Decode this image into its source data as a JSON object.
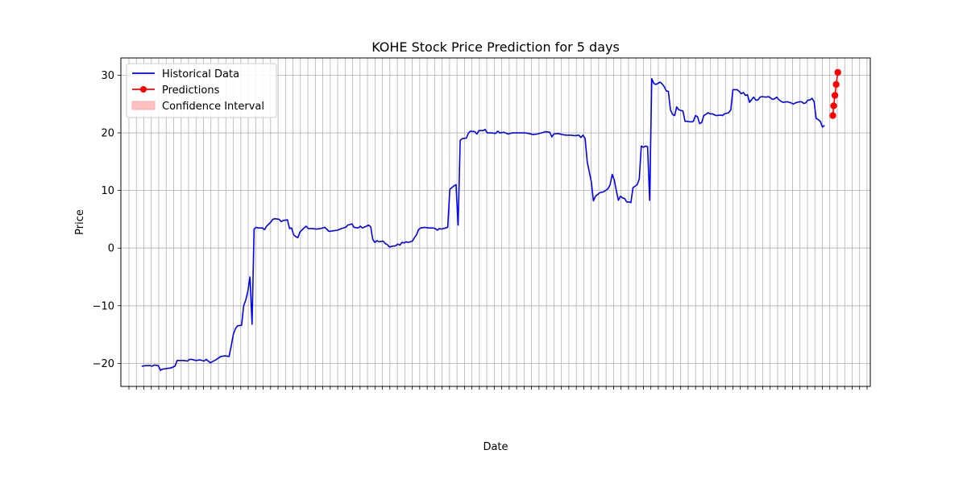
{
  "chart_data": {
    "type": "line",
    "title": "KOHE Stock Price Prediction for 5 days",
    "xlabel": "Date",
    "ylabel": "Price",
    "ylim": [
      -24,
      33
    ],
    "yticks": [
      -20,
      -10,
      0,
      10,
      20,
      30
    ],
    "grid": true,
    "legend_position": "upper-left",
    "legend": {
      "historical": "Historical Data",
      "predictions": "Predictions",
      "confidence": "Confidence Interval"
    },
    "colors": {
      "historical": "#0000ff",
      "predictions": "#ff0000",
      "confidence": "#ffc0c0"
    },
    "series": [
      {
        "name": "Historical Data",
        "points": [
          [
            0.0,
            -20.5
          ],
          [
            0.01,
            -20.4
          ],
          [
            0.02,
            -20.4
          ],
          [
            0.025,
            -20.5
          ],
          [
            0.03,
            -20.3
          ],
          [
            0.04,
            -20.4
          ],
          [
            0.045,
            -21.2
          ],
          [
            0.05,
            -21.0
          ],
          [
            0.06,
            -20.9
          ],
          [
            0.07,
            -20.8
          ],
          [
            0.08,
            -20.5
          ],
          [
            0.085,
            -19.5
          ],
          [
            0.1,
            -19.5
          ],
          [
            0.11,
            -19.6
          ],
          [
            0.115,
            -19.3
          ],
          [
            0.12,
            -19.3
          ],
          [
            0.13,
            -19.5
          ],
          [
            0.14,
            -19.4
          ],
          [
            0.15,
            -19.6
          ],
          [
            0.155,
            -19.3
          ],
          [
            0.165,
            -19.9
          ],
          [
            0.17,
            -19.7
          ],
          [
            0.175,
            -19.5
          ],
          [
            0.18,
            -19.3
          ],
          [
            0.19,
            -18.8
          ],
          [
            0.2,
            -18.7
          ],
          [
            0.21,
            -18.8
          ],
          [
            0.215,
            -17.0
          ],
          [
            0.22,
            -15.0
          ],
          [
            0.225,
            -14.0
          ],
          [
            0.23,
            -13.5
          ],
          [
            0.24,
            -13.4
          ],
          [
            0.245,
            -10.0
          ],
          [
            0.25,
            -9.0
          ],
          [
            0.255,
            -7.5
          ],
          [
            0.26,
            -5.0
          ],
          [
            0.265,
            -13.2
          ],
          [
            0.27,
            3.3
          ],
          [
            0.275,
            3.6
          ],
          [
            0.28,
            3.5
          ],
          [
            0.29,
            3.5
          ],
          [
            0.295,
            3.2
          ],
          [
            0.3,
            3.8
          ],
          [
            0.31,
            4.5
          ],
          [
            0.315,
            5.0
          ],
          [
            0.32,
            5.1
          ],
          [
            0.33,
            5.0
          ],
          [
            0.335,
            4.6
          ],
          [
            0.34,
            4.8
          ],
          [
            0.35,
            4.9
          ],
          [
            0.355,
            3.4
          ],
          [
            0.36,
            3.5
          ],
          [
            0.365,
            2.3
          ],
          [
            0.37,
            2.0
          ],
          [
            0.375,
            1.8
          ],
          [
            0.38,
            2.8
          ],
          [
            0.39,
            3.5
          ],
          [
            0.395,
            3.8
          ],
          [
            0.4,
            3.4
          ],
          [
            0.41,
            3.4
          ],
          [
            0.42,
            3.3
          ],
          [
            0.43,
            3.4
          ],
          [
            0.44,
            3.6
          ],
          [
            0.45,
            2.9
          ],
          [
            0.46,
            3.0
          ],
          [
            0.47,
            3.1
          ],
          [
            0.48,
            3.4
          ],
          [
            0.49,
            3.6
          ],
          [
            0.495,
            4.0
          ],
          [
            0.5,
            4.1
          ],
          [
            0.505,
            4.2
          ],
          [
            0.51,
            3.6
          ],
          [
            0.52,
            3.5
          ],
          [
            0.525,
            3.8
          ],
          [
            0.53,
            3.5
          ],
          [
            0.54,
            3.8
          ],
          [
            0.545,
            4.0
          ],
          [
            0.55,
            3.7
          ],
          [
            0.555,
            1.5
          ],
          [
            0.56,
            1.0
          ],
          [
            0.565,
            1.3
          ],
          [
            0.57,
            1.1
          ],
          [
            0.58,
            1.2
          ],
          [
            0.585,
            0.8
          ],
          [
            0.59,
            0.6
          ],
          [
            0.595,
            0.2
          ],
          [
            0.6,
            0.3
          ],
          [
            0.61,
            0.4
          ],
          [
            0.615,
            0.7
          ],
          [
            0.62,
            0.5
          ],
          [
            0.625,
            1.0
          ],
          [
            0.63,
            0.9
          ],
          [
            0.635,
            1.1
          ],
          [
            0.64,
            1.0
          ],
          [
            0.65,
            1.2
          ],
          [
            0.655,
            1.8
          ],
          [
            0.66,
            2.3
          ],
          [
            0.665,
            3.2
          ],
          [
            0.67,
            3.5
          ],
          [
            0.68,
            3.6
          ],
          [
            0.69,
            3.5
          ],
          [
            0.7,
            3.5
          ],
          [
            0.705,
            3.4
          ],
          [
            0.71,
            3.1
          ],
          [
            0.715,
            3.4
          ],
          [
            0.72,
            3.3
          ],
          [
            0.73,
            3.5
          ],
          [
            0.735,
            3.6
          ],
          [
            0.74,
            10.2
          ],
          [
            0.75,
            10.8
          ],
          [
            0.755,
            11.0
          ],
          [
            0.76,
            4.0
          ],
          [
            0.765,
            18.7
          ],
          [
            0.77,
            19.0
          ],
          [
            0.78,
            19.1
          ],
          [
            0.785,
            20.0
          ],
          [
            0.79,
            20.3
          ],
          [
            0.8,
            20.2
          ],
          [
            0.805,
            19.8
          ],
          [
            0.81,
            20.4
          ],
          [
            0.82,
            20.4
          ],
          [
            0.825,
            20.6
          ],
          [
            0.83,
            20.0
          ],
          [
            0.84,
            20.0
          ],
          [
            0.85,
            19.9
          ],
          [
            0.855,
            20.3
          ],
          [
            0.86,
            20.0
          ],
          [
            0.87,
            20.1
          ],
          [
            0.88,
            19.8
          ],
          [
            0.89,
            20.0
          ],
          [
            0.9,
            20.0
          ],
          [
            0.91,
            20.0
          ],
          [
            0.92,
            20.0
          ],
          [
            0.93,
            19.9
          ],
          [
            0.94,
            19.7
          ],
          [
            0.95,
            19.8
          ],
          [
            0.96,
            20.0
          ],
          [
            0.97,
            20.2
          ],
          [
            0.98,
            20.1
          ],
          [
            0.985,
            19.3
          ],
          [
            0.99,
            19.8
          ],
          [
            1.0,
            19.9
          ],
          [
            1.01,
            19.7
          ],
          [
            1.02,
            19.6
          ],
          [
            1.03,
            19.6
          ],
          [
            1.04,
            19.5
          ],
          [
            1.05,
            19.6
          ],
          [
            1.055,
            19.2
          ],
          [
            1.06,
            19.6
          ],
          [
            1.065,
            19.0
          ],
          [
            1.07,
            15.0
          ],
          [
            1.08,
            11.5
          ],
          [
            1.085,
            8.2
          ],
          [
            1.09,
            9.0
          ],
          [
            1.1,
            9.6
          ],
          [
            1.11,
            9.8
          ],
          [
            1.12,
            10.3
          ],
          [
            1.125,
            11.0
          ],
          [
            1.13,
            12.8
          ],
          [
            1.135,
            11.8
          ],
          [
            1.14,
            10.0
          ],
          [
            1.145,
            8.3
          ],
          [
            1.15,
            9.0
          ],
          [
            1.155,
            8.7
          ],
          [
            1.16,
            8.6
          ],
          [
            1.165,
            8.0
          ],
          [
            1.17,
            8.0
          ],
          [
            1.175,
            7.9
          ],
          [
            1.18,
            10.5
          ],
          [
            1.19,
            11.0
          ],
          [
            1.195,
            12.0
          ],
          [
            1.2,
            17.7
          ],
          [
            1.205,
            17.5
          ],
          [
            1.21,
            17.7
          ],
          [
            1.215,
            17.6
          ],
          [
            1.22,
            8.3
          ],
          [
            1.225,
            29.4
          ],
          [
            1.23,
            28.6
          ],
          [
            1.235,
            28.4
          ],
          [
            1.24,
            28.6
          ],
          [
            1.245,
            28.8
          ],
          [
            1.25,
            28.5
          ],
          [
            1.255,
            28.0
          ],
          [
            1.26,
            27.3
          ],
          [
            1.265,
            27.2
          ],
          [
            1.27,
            24.0
          ],
          [
            1.275,
            23.2
          ],
          [
            1.28,
            23.0
          ],
          [
            1.285,
            24.5
          ],
          [
            1.29,
            24.0
          ],
          [
            1.3,
            23.8
          ],
          [
            1.305,
            22.0
          ],
          [
            1.31,
            22.0
          ],
          [
            1.32,
            21.9
          ],
          [
            1.325,
            22.0
          ],
          [
            1.33,
            23.0
          ],
          [
            1.335,
            22.8
          ],
          [
            1.34,
            21.6
          ],
          [
            1.345,
            21.8
          ],
          [
            1.35,
            23.0
          ],
          [
            1.355,
            23.2
          ],
          [
            1.36,
            23.5
          ],
          [
            1.365,
            23.3
          ],
          [
            1.37,
            23.3
          ],
          [
            1.38,
            23.0
          ],
          [
            1.39,
            23.1
          ],
          [
            1.395,
            23.0
          ],
          [
            1.4,
            23.3
          ],
          [
            1.41,
            23.5
          ],
          [
            1.415,
            24.0
          ],
          [
            1.42,
            27.5
          ],
          [
            1.43,
            27.5
          ],
          [
            1.435,
            27.2
          ],
          [
            1.44,
            26.8
          ],
          [
            1.445,
            27.0
          ],
          [
            1.45,
            26.5
          ],
          [
            1.455,
            26.6
          ],
          [
            1.46,
            25.3
          ],
          [
            1.465,
            25.8
          ],
          [
            1.47,
            26.2
          ],
          [
            1.475,
            25.7
          ],
          [
            1.48,
            25.7
          ],
          [
            1.485,
            26.2
          ],
          [
            1.49,
            26.3
          ],
          [
            1.5,
            26.2
          ],
          [
            1.505,
            26.3
          ],
          [
            1.51,
            26.1
          ],
          [
            1.515,
            25.8
          ],
          [
            1.52,
            25.9
          ],
          [
            1.525,
            26.2
          ],
          [
            1.53,
            25.8
          ],
          [
            1.535,
            25.5
          ],
          [
            1.54,
            25.3
          ],
          [
            1.55,
            25.4
          ],
          [
            1.56,
            25.2
          ],
          [
            1.565,
            25.0
          ],
          [
            1.57,
            25.2
          ],
          [
            1.58,
            25.4
          ],
          [
            1.585,
            25.4
          ],
          [
            1.59,
            25.1
          ],
          [
            1.595,
            25.2
          ],
          [
            1.6,
            25.7
          ],
          [
            1.605,
            25.7
          ],
          [
            1.61,
            26.0
          ],
          [
            1.615,
            25.4
          ],
          [
            1.62,
            22.5
          ],
          [
            1.625,
            22.3
          ],
          [
            1.63,
            22.0
          ],
          [
            1.635,
            21.0
          ],
          [
            1.64,
            21.3
          ]
        ]
      },
      {
        "name": "Predictions",
        "points": [
          [
            1.66,
            23.0
          ],
          [
            1.662,
            24.7
          ],
          [
            1.665,
            26.5
          ],
          [
            1.668,
            28.4
          ],
          [
            1.672,
            30.5
          ]
        ]
      }
    ],
    "xlim": [
      -0.05,
      1.75
    ]
  }
}
